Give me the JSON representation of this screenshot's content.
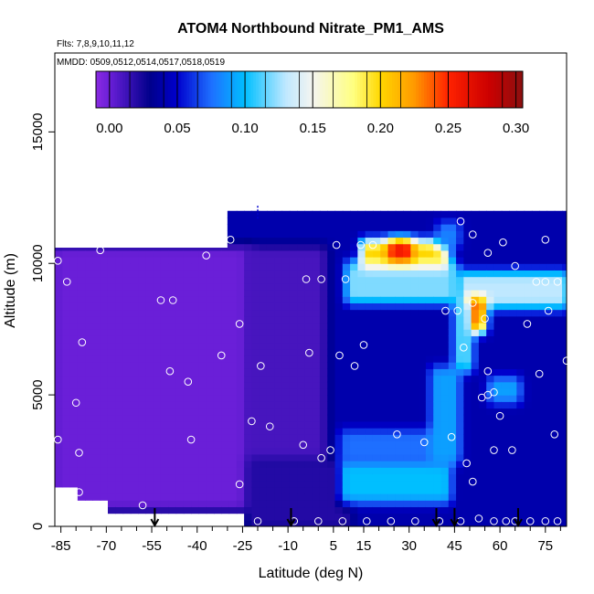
{
  "chart_data": {
    "type": "heatmap",
    "title": "ATOM4 Northbound Nitrate_PM1_AMS",
    "notes": [
      "Flts: 7,8,9,10,11,12",
      "MMDD: 0509,0512,0514,0517,0518,0519"
    ],
    "xlabel": "Latitude (deg N)",
    "ylabel": "Altitude (m)",
    "xlim": [
      -87,
      82
    ],
    "ylim": [
      0,
      18000
    ],
    "x_ticks": [
      -85,
      -70,
      -55,
      -40,
      -25,
      -10,
      5,
      15,
      30,
      45,
      60,
      75
    ],
    "x_minor_ticks": [
      -80,
      -75,
      -65,
      -60,
      -50,
      -45,
      -35,
      -30,
      -20,
      -15,
      -5,
      0,
      10,
      20,
      25,
      35,
      40,
      50,
      55,
      65,
      70,
      80
    ],
    "y_ticks": [
      0,
      5000,
      10000,
      15000
    ],
    "colorbar": {
      "min": -0.01,
      "max": 0.305,
      "ticks": [
        0.0,
        0.05,
        0.1,
        0.15,
        0.2,
        0.25,
        0.3
      ],
      "tick_labels": [
        "0.00",
        "0.05",
        "0.10",
        "0.15",
        "0.20",
        "0.25",
        "0.30"
      ],
      "stops": [
        {
          "v": -0.01,
          "c": "#8a2be2"
        },
        {
          "v": 0.0,
          "c": "#6a1fd8"
        },
        {
          "v": 0.03,
          "c": "#00008b"
        },
        {
          "v": 0.05,
          "c": "#0000cd"
        },
        {
          "v": 0.075,
          "c": "#1e6fff"
        },
        {
          "v": 0.1,
          "c": "#00bfff"
        },
        {
          "v": 0.13,
          "c": "#bfe8ff"
        },
        {
          "v": 0.15,
          "c": "#f5f5f0"
        },
        {
          "v": 0.18,
          "c": "#ffff80"
        },
        {
          "v": 0.2,
          "c": "#ffd700"
        },
        {
          "v": 0.225,
          "c": "#ff9900"
        },
        {
          "v": 0.25,
          "c": "#ff2200"
        },
        {
          "v": 0.28,
          "c": "#cc0000"
        },
        {
          "v": 0.305,
          "c": "#8b1010"
        }
      ]
    },
    "field": {
      "background": 0.04,
      "regions": [
        {
          "lat": [
            -87,
            -23
          ],
          "alt": [
            700,
            10600
          ],
          "value": 0.0
        },
        {
          "lat": [
            -23,
            2
          ],
          "alt": [
            2500,
            10600
          ],
          "value": 0.01
        },
        {
          "lat": [
            -23,
            10
          ],
          "alt": [
            0,
            2500
          ],
          "value": 0.02
        },
        {
          "lat": [
            8,
            43
          ],
          "alt": [
            1000,
            2500
          ],
          "value": 0.1
        },
        {
          "lat": [
            8,
            43
          ],
          "alt": [
            2500,
            3600
          ],
          "value": 0.075
        },
        {
          "lat": [
            10,
            45
          ],
          "alt": [
            8600,
            10000
          ],
          "value": 0.12
        },
        {
          "lat": [
            15,
            42
          ],
          "alt": [
            10000,
            10800
          ],
          "value": 0.2
        },
        {
          "lat": [
            24,
            30
          ],
          "alt": [
            10200,
            10800
          ],
          "value": 0.26
        },
        {
          "lat": [
            40,
            46
          ],
          "alt": [
            10700,
            11500
          ],
          "value": 0.08
        },
        {
          "lat": [
            47,
            82
          ],
          "alt": [
            8400,
            9600
          ],
          "value": 0.13
        },
        {
          "lat": [
            50,
            54
          ],
          "alt": [
            7500,
            8600
          ],
          "value": 0.28
        },
        {
          "lat": [
            46,
            50
          ],
          "alt": [
            6000,
            8500
          ],
          "value": 0.12
        },
        {
          "lat": [
            38,
            46
          ],
          "alt": [
            2500,
            6000
          ],
          "value": 0.09
        },
        {
          "lat": [
            57,
            66
          ],
          "alt": [
            4800,
            5600
          ],
          "value": 0.09
        }
      ],
      "upper_band": {
        "lat": [
          -30,
          82
        ],
        "alt": [
          10600,
          12000
        ],
        "value": 0.04
      }
    },
    "observations": [
      {
        "lat": -86,
        "alt": 10100
      },
      {
        "lat": -83,
        "alt": 9300
      },
      {
        "lat": -78,
        "alt": 7000
      },
      {
        "lat": -80,
        "alt": 4700
      },
      {
        "lat": -79,
        "alt": 2800
      },
      {
        "lat": -86,
        "alt": 3300
      },
      {
        "lat": -79,
        "alt": 1300
      },
      {
        "lat": -72,
        "alt": 10500
      },
      {
        "lat": -58,
        "alt": 800
      },
      {
        "lat": -58,
        "alt": 300
      },
      {
        "lat": -52,
        "alt": 8600
      },
      {
        "lat": -48,
        "alt": 8600
      },
      {
        "lat": -49,
        "alt": 5900
      },
      {
        "lat": -43,
        "alt": 5500
      },
      {
        "lat": -42,
        "alt": 3300
      },
      {
        "lat": -37,
        "alt": 10300
      },
      {
        "lat": -29,
        "alt": 10900
      },
      {
        "lat": -32,
        "alt": 6500
      },
      {
        "lat": -26,
        "alt": 7700
      },
      {
        "lat": -26,
        "alt": 1600
      },
      {
        "lat": -19,
        "alt": 6100
      },
      {
        "lat": -22,
        "alt": 4000
      },
      {
        "lat": -16,
        "alt": 3800
      },
      {
        "lat": -4,
        "alt": 9400
      },
      {
        "lat": 1,
        "alt": 9400
      },
      {
        "lat": -3,
        "alt": 6600
      },
      {
        "lat": -5,
        "alt": 3100
      },
      {
        "lat": 1,
        "alt": 2600
      },
      {
        "lat": 4,
        "alt": 2900
      },
      {
        "lat": 9,
        "alt": 9400
      },
      {
        "lat": 6,
        "alt": 10700
      },
      {
        "lat": 7,
        "alt": 6500
      },
      {
        "lat": 12,
        "alt": 6100
      },
      {
        "lat": 15,
        "alt": 6900
      },
      {
        "lat": 14,
        "alt": 10700
      },
      {
        "lat": 18,
        "alt": 10700
      },
      {
        "lat": 26,
        "alt": 3500
      },
      {
        "lat": 35,
        "alt": 3200
      },
      {
        "lat": 44,
        "alt": 3400
      },
      {
        "lat": 47,
        "alt": 11600
      },
      {
        "lat": 51,
        "alt": 11100
      },
      {
        "lat": 42,
        "alt": 8200
      },
      {
        "lat": 46,
        "alt": 8200
      },
      {
        "lat": 48,
        "alt": 6800
      },
      {
        "lat": 51,
        "alt": 8500
      },
      {
        "lat": 56,
        "alt": 10400
      },
      {
        "lat": 55,
        "alt": 7900
      },
      {
        "lat": 54,
        "alt": 4900
      },
      {
        "lat": 56,
        "alt": 5000
      },
      {
        "lat": 58,
        "alt": 5100
      },
      {
        "lat": 56,
        "alt": 5900
      },
      {
        "lat": 60,
        "alt": 4200
      },
      {
        "lat": 58,
        "alt": 2900
      },
      {
        "lat": 64,
        "alt": 2900
      },
      {
        "lat": 61,
        "alt": 10800
      },
      {
        "lat": 65,
        "alt": 9900
      },
      {
        "lat": 72,
        "alt": 9300
      },
      {
        "lat": 69,
        "alt": 7700
      },
      {
        "lat": 73,
        "alt": 5800
      },
      {
        "lat": 75,
        "alt": 9300
      },
      {
        "lat": 79,
        "alt": 9300
      },
      {
        "lat": 75,
        "alt": 10900
      },
      {
        "lat": 76,
        "alt": 8200
      },
      {
        "lat": 82,
        "alt": 6300
      },
      {
        "lat": 78,
        "alt": 3500
      },
      {
        "lat": 51,
        "alt": 1700
      },
      {
        "lat": 49,
        "alt": 2400
      },
      {
        "lat": -52,
        "alt": 200
      },
      {
        "lat": -47,
        "alt": 200
      },
      {
        "lat": -40,
        "alt": 200
      },
      {
        "lat": -34,
        "alt": 200
      },
      {
        "lat": -26,
        "alt": 200
      },
      {
        "lat": -20,
        "alt": 200
      },
      {
        "lat": -8,
        "alt": 200
      },
      {
        "lat": 0,
        "alt": 200
      },
      {
        "lat": 8,
        "alt": 200
      },
      {
        "lat": 16,
        "alt": 200
      },
      {
        "lat": 24,
        "alt": 200
      },
      {
        "lat": 32,
        "alt": 200
      },
      {
        "lat": 40,
        "alt": 200
      },
      {
        "lat": 47,
        "alt": 200
      },
      {
        "lat": 53,
        "alt": 300
      },
      {
        "lat": 58,
        "alt": 200
      },
      {
        "lat": 62,
        "alt": 200
      },
      {
        "lat": 65,
        "alt": 200
      },
      {
        "lat": 70,
        "alt": 200
      },
      {
        "lat": 75,
        "alt": 200
      },
      {
        "lat": 79,
        "alt": 200
      }
    ],
    "profile_arrows_lat": [
      -54,
      -9,
      39,
      45,
      66
    ],
    "marker_lat": -20,
    "marker_alt": [
      11700,
      12200
    ]
  }
}
